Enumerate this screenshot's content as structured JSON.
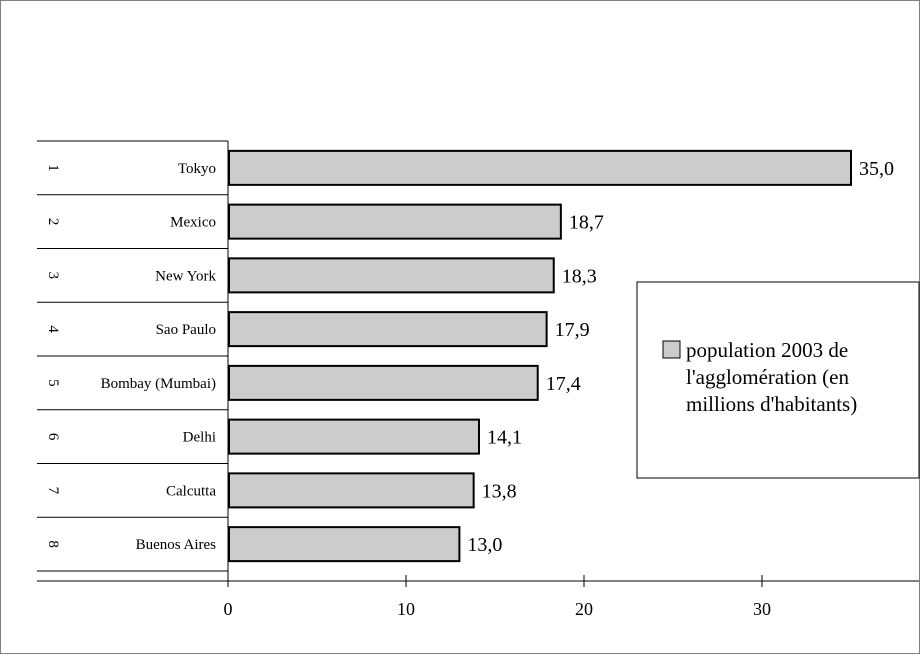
{
  "chart_data": {
    "type": "bar",
    "orientation": "horizontal",
    "title": "",
    "xlabel": "",
    "ylabel": "",
    "ranks": [
      "1",
      "2",
      "3",
      "4",
      "5",
      "6",
      "7",
      "8"
    ],
    "categories": [
      "Tokyo",
      "Mexico",
      "New York",
      "Sao Paulo",
      "Bombay (Mumbai)",
      "Delhi",
      "Calcutta",
      "Buenos Aires"
    ],
    "values": [
      35.0,
      18.7,
      18.3,
      17.9,
      17.4,
      14.1,
      13.8,
      13.0
    ],
    "value_labels": [
      "35,0",
      "18,7",
      "18,3",
      "17,9",
      "17,4",
      "14,1",
      "13,8",
      "13,0"
    ],
    "xlim": [
      0,
      35
    ],
    "x_ticks": [
      0,
      10,
      20,
      30
    ],
    "x_tick_labels": [
      "0",
      "10",
      "20",
      "30"
    ],
    "grid": false,
    "legend": {
      "placement": "right",
      "lines": [
        "population 2003 de",
        "l'agglomération (en",
        "millions d'habitants)"
      ]
    },
    "colors": {
      "bar_fill": "#cccccc",
      "bar_stroke": "#000000"
    }
  }
}
